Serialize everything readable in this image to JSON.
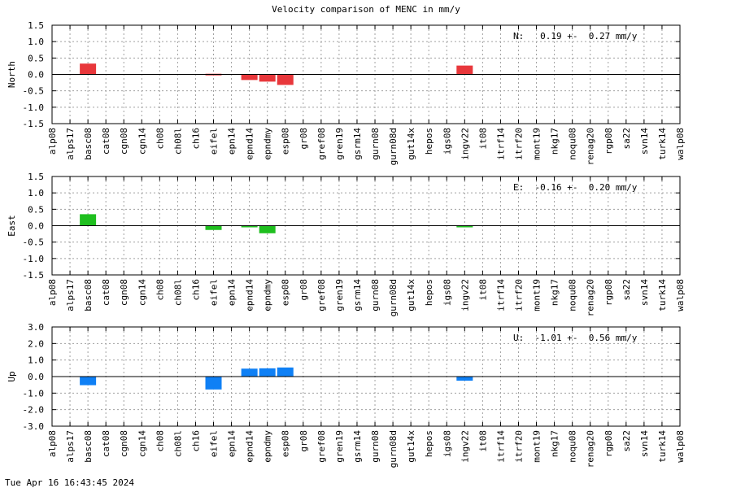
{
  "title": "Velocity comparison of MENC in mm/y",
  "timestamp": "Tue Apr 16 16:43:45 2024",
  "chart_data": [
    {
      "type": "bar",
      "ylabel": "North",
      "ylim": [
        -1.5,
        1.5
      ],
      "yticks": [
        "1.5",
        "1.0",
        "0.5",
        "0.0",
        "-0.5",
        "-1.0",
        "-1.5"
      ],
      "annotation": "N:   0.19 +-  0.27 mm/y",
      "color": "#e8373b",
      "grid": true,
      "categories": [
        "alp08",
        "alps17",
        "basc08",
        "cat08",
        "cgn08",
        "cgn14",
        "ch08",
        "ch08l",
        "ch16",
        "eifel",
        "epn14",
        "epnd14",
        "epndmy",
        "esp08",
        "gr08",
        "gref08",
        "gren19",
        "gsrm14",
        "gurn08",
        "gurn08d",
        "gut14x",
        "hepos",
        "igs08",
        "ingv22",
        "it08",
        "itrf14",
        "itrf20",
        "mont19",
        "nkg17",
        "noqu08",
        "renag20",
        "rgp08",
        "sa22",
        "svn14",
        "turk14",
        "walp08"
      ],
      "values": [
        0,
        0,
        0.33,
        0,
        0,
        0,
        0,
        0,
        0,
        0.02,
        0,
        -0.17,
        -0.22,
        -0.32,
        0,
        0,
        0,
        0,
        0,
        0,
        0,
        0,
        0,
        0.27,
        0,
        0,
        0,
        0,
        0,
        0,
        0,
        0,
        0,
        0,
        0,
        0
      ]
    },
    {
      "type": "bar",
      "ylabel": "East",
      "ylim": [
        -1.5,
        1.5
      ],
      "yticks": [
        "1.5",
        "1.0",
        "0.5",
        "0.0",
        "-0.5",
        "-1.0",
        "-1.5"
      ],
      "annotation": "E:  -0.16 +-  0.20 mm/y",
      "color": "#1fbf1f",
      "grid": true,
      "categories": [
        "alp08",
        "alps17",
        "basc08",
        "cat08",
        "cgn08",
        "cgn14",
        "ch08",
        "ch08l",
        "ch16",
        "eifel",
        "epn14",
        "epnd14",
        "epndmy",
        "esp08",
        "gr08",
        "gref08",
        "gren19",
        "gsrm14",
        "gurn08",
        "gurn08d",
        "gut14x",
        "hepos",
        "igs08",
        "ingv22",
        "it08",
        "itrf14",
        "itrf20",
        "mont19",
        "nkg17",
        "noqu08",
        "renag20",
        "rgp08",
        "sa22",
        "svn14",
        "turk14",
        "walp08"
      ],
      "values": [
        0,
        0,
        0.35,
        0,
        0,
        0,
        0,
        0,
        0,
        -0.13,
        0,
        -0.05,
        -0.23,
        0,
        0,
        0,
        0,
        0,
        0,
        0,
        0,
        0,
        0,
        -0.05,
        0,
        0,
        0,
        0,
        0,
        0,
        0,
        0,
        0,
        0,
        0,
        0
      ]
    },
    {
      "type": "bar",
      "ylabel": "Up",
      "ylim": [
        -3.0,
        3.0
      ],
      "yticks": [
        "3.0",
        "2.0",
        "1.0",
        "0.0",
        "-1.0",
        "-2.0",
        "-3.0"
      ],
      "annotation": "U:  -1.01 +-  0.56 mm/y",
      "color": "#0f80f5",
      "grid": true,
      "categories": [
        "alp08",
        "alps17",
        "basc08",
        "cat08",
        "cgn08",
        "cgn14",
        "ch08",
        "ch08l",
        "ch16",
        "eifel",
        "epn14",
        "epnd14",
        "epndmy",
        "esp08",
        "gr08",
        "gref08",
        "gren19",
        "gsrm14",
        "gurn08",
        "gurn08d",
        "gut14x",
        "hepos",
        "igs08",
        "ingv22",
        "it08",
        "itrf14",
        "itrf20",
        "mont19",
        "nkg17",
        "noqu08",
        "renag20",
        "rgp08",
        "sa22",
        "svn14",
        "turk14",
        "walp08"
      ],
      "values": [
        0,
        0,
        -0.52,
        0,
        0,
        0,
        0,
        0,
        0,
        -0.78,
        0,
        0.48,
        0.5,
        0.55,
        0,
        0,
        0,
        0,
        0,
        0,
        0,
        0,
        0,
        -0.25,
        0,
        0,
        0,
        0,
        0,
        0,
        0,
        0,
        0,
        0,
        0,
        0
      ]
    }
  ]
}
